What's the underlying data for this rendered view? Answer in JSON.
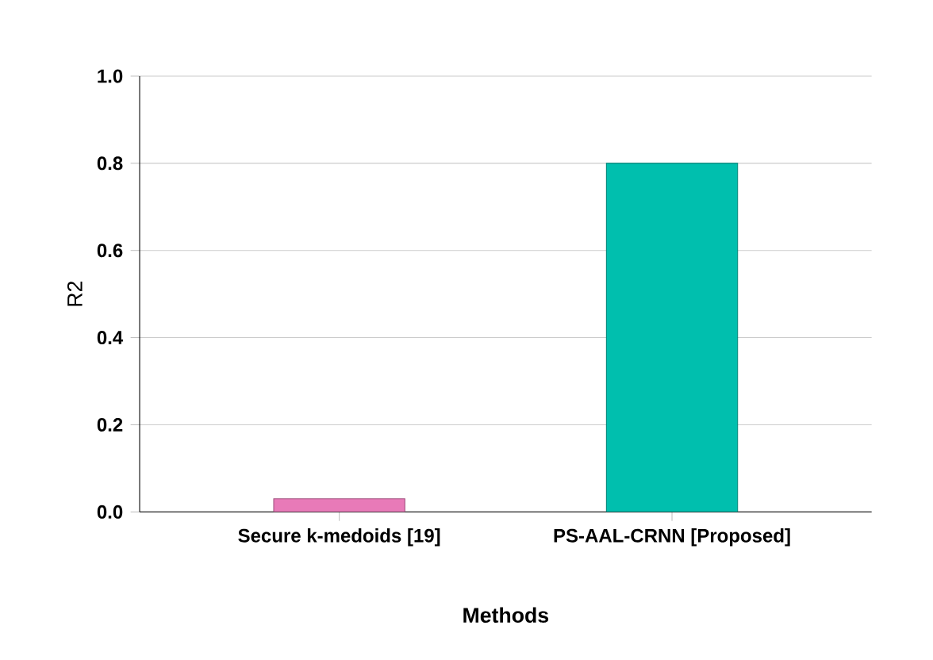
{
  "chart_data": {
    "type": "bar",
    "xlabel": "Methods",
    "ylabel": "R2",
    "categories": [
      "Secure k-medoids  [19]",
      "PS-AAL-CRNN [Proposed]"
    ],
    "values": [
      0.03,
      0.8
    ],
    "colors": [
      "#e87ab8",
      "#00bfae"
    ],
    "ylim": [
      0,
      1
    ],
    "yticks": [
      {
        "value": 0,
        "label": "0.0"
      },
      {
        "value": 0.2,
        "label": "0.2"
      },
      {
        "value": 0.4,
        "label": "0.4"
      },
      {
        "value": 0.6,
        "label": "0.6"
      },
      {
        "value": 0.8,
        "label": "0.8"
      },
      {
        "value": 1,
        "label": "1.0"
      }
    ],
    "grid": "y"
  }
}
